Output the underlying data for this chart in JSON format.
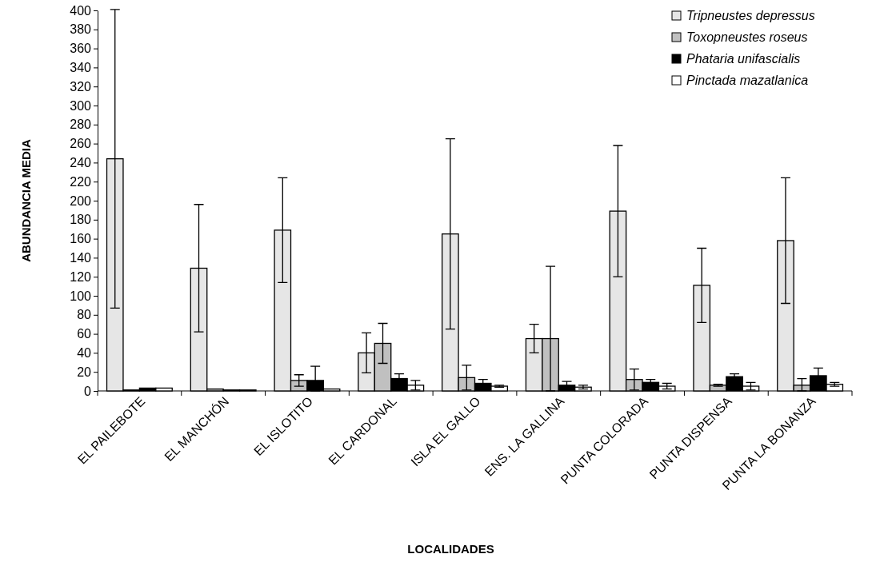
{
  "chart_data": {
    "type": "bar",
    "xlabel": "LOCALIDADES",
    "ylabel": "ABUNDANCIA MEDIA",
    "categories": [
      "EL PAILEBOTE",
      "EL MANCHÓN",
      "EL ISLOTITO",
      "EL CARDONAL",
      "ISLA EL GALLO",
      "ENS. LA GALLINA",
      "PUNTA COLORADA",
      "PUNTA DISPENSA",
      "PUNTA LA BONANZA"
    ],
    "series": [
      {
        "name": "Tripneustes depressus",
        "color": "#e6e6e6",
        "values": [
          244,
          129,
          169,
          40,
          165,
          55,
          189,
          111,
          158
        ],
        "errors": [
          157,
          67,
          55,
          21,
          100,
          15,
          69,
          39,
          66
        ]
      },
      {
        "name": "Toxopneustes roseus",
        "color": "#c0c0c0",
        "values": [
          1,
          2,
          11,
          50,
          14,
          55,
          12,
          6,
          6
        ],
        "errors": [
          null,
          null,
          6,
          21,
          13,
          [
            0,
            131
          ],
          11,
          1,
          [
            0,
            13
          ]
        ]
      },
      {
        "name": "Phataria unifascialis",
        "color": "#000000",
        "values": [
          3,
          1,
          11,
          13,
          8,
          6,
          9,
          15,
          16
        ],
        "errors": [
          null,
          null,
          [
            0,
            26
          ],
          5,
          4,
          4,
          3,
          3,
          8
        ]
      },
      {
        "name": "Pinctada mazatlanica",
        "color": "#ffffff",
        "values": [
          3,
          1,
          2,
          6,
          5,
          4,
          5,
          5,
          7
        ],
        "errors": [
          null,
          null,
          null,
          5,
          1,
          2,
          3,
          4,
          2
        ]
      }
    ],
    "ylim": [
      0,
      400
    ],
    "yticks": [
      0,
      20,
      40,
      60,
      80,
      100,
      120,
      140,
      160,
      180,
      200,
      220,
      240,
      260,
      280,
      300,
      320,
      340,
      360,
      380,
      400
    ],
    "grid": false,
    "legend": "top right"
  }
}
